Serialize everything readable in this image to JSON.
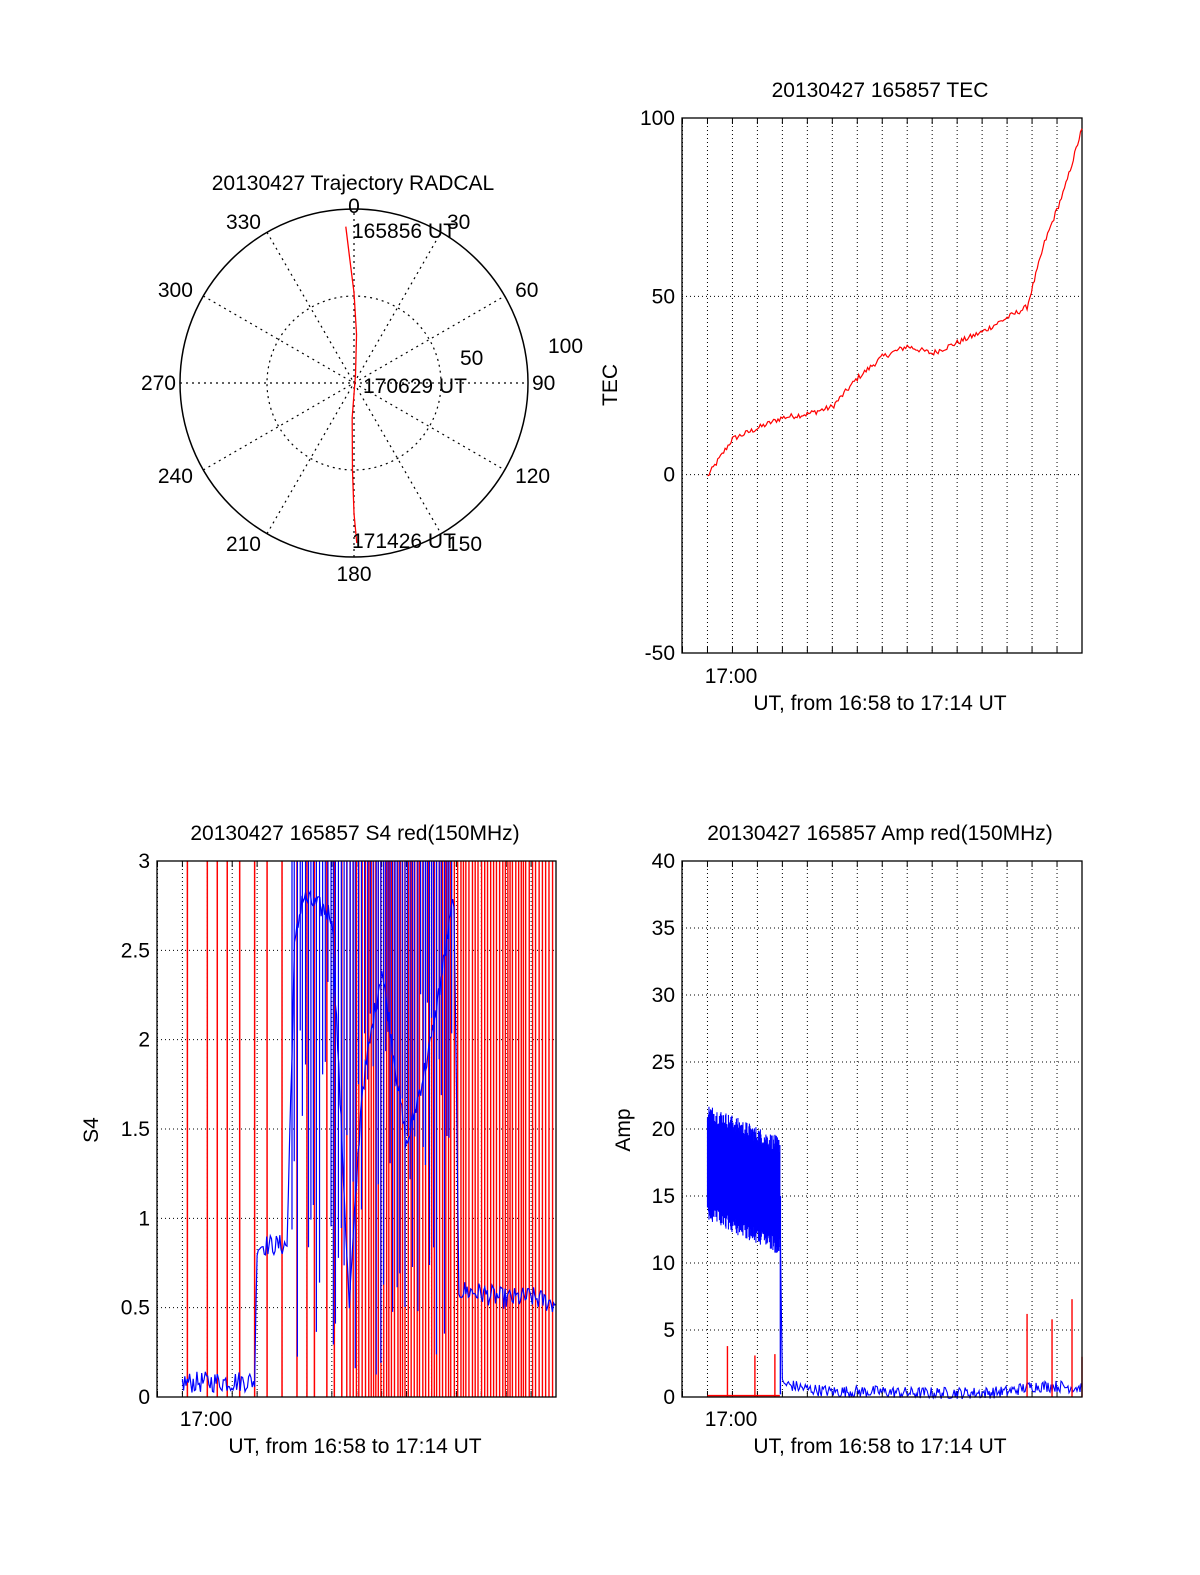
{
  "chart_data": [
    {
      "type": "polar",
      "title": "20130427 Trajectory RADCAL",
      "angle_labels": [
        "0",
        "30",
        "60",
        "90",
        "120",
        "150",
        "180",
        "210",
        "240",
        "270",
        "300",
        "330"
      ],
      "radius_labels": [
        "50",
        "100"
      ],
      "rlim": [
        0,
        100
      ],
      "grid": true,
      "annotations": [
        "165856 UT",
        "170629 UT",
        "171426 UT"
      ],
      "series": [
        {
          "color": "#ff0000",
          "points": [
            {
              "az": 357,
              "r": 90
            },
            {
              "az": 358,
              "r": 72
            },
            {
              "az": 0,
              "r": 52
            },
            {
              "az": 3,
              "r": 28
            },
            {
              "az": 10,
              "r": 5
            },
            {
              "az": 183,
              "r": 20
            },
            {
              "az": 181,
              "r": 50
            },
            {
              "az": 180,
              "r": 75
            },
            {
              "az": 179,
              "r": 92
            }
          ]
        }
      ]
    },
    {
      "type": "line",
      "title": "20130427 165857 TEC",
      "ylabel": "TEC",
      "xlabel": "UT, from 16:58 to 17:14 UT",
      "xtick_labels": [
        "17:00"
      ],
      "yticks": [
        "-50",
        "0",
        "50",
        "100"
      ],
      "ylim": [
        -50,
        100
      ],
      "xlim_minutes": [
        16.98,
        33.0
      ],
      "grid": true,
      "series": [
        {
          "color": "#ff0000",
          "points": [
            [
              18.0,
              -0.5
            ],
            [
              19.0,
              10
            ],
            [
              20.0,
              13
            ],
            [
              21.0,
              16
            ],
            [
              22.0,
              17
            ],
            [
              23.0,
              19
            ],
            [
              24.0,
              27
            ],
            [
              25.0,
              33
            ],
            [
              26.0,
              36
            ],
            [
              27.0,
              34
            ],
            [
              28.0,
              37
            ],
            [
              29.0,
              40
            ],
            [
              30.0,
              44
            ],
            [
              30.8,
              47
            ],
            [
              31.5,
              65
            ],
            [
              32.3,
              80
            ],
            [
              33.0,
              97
            ]
          ]
        }
      ]
    },
    {
      "type": "line",
      "title": "20130427 165857 S4 red(150MHz)",
      "ylabel": "S4",
      "xlabel": "UT, from 16:58 to 17:14 UT",
      "xtick_labels": [
        "17:00"
      ],
      "yticks": [
        "0",
        "0.5",
        "1",
        "1.5",
        "2",
        "2.5",
        "3"
      ],
      "ylim": [
        0,
        3
      ],
      "xlim_minutes": [
        16.98,
        33.0
      ],
      "grid": true,
      "series": [
        {
          "color": "#ff0000",
          "spike_times": [
            18.2,
            19.0,
            19.4,
            19.8,
            20.3,
            20.9,
            21.4,
            22.0,
            22.6,
            23.0,
            23.3,
            23.8,
            24.1,
            24.4
          ]
        },
        {
          "color": "#0000ff",
          "points": [
            [
              18.0,
              0.08
            ],
            [
              20.9,
              0.09
            ],
            [
              21.0,
              0.85
            ],
            [
              22.2,
              0.85
            ],
            [
              22.5,
              2.5
            ],
            [
              22.8,
              2.8
            ],
            [
              24.0,
              2.7
            ],
            [
              24.7,
              0.5
            ],
            [
              25.2,
              1.7
            ],
            [
              26.0,
              2.4
            ],
            [
              27.0,
              1.4
            ],
            [
              28.0,
              2.0
            ],
            [
              28.9,
              2.8
            ],
            [
              29.1,
              0.6
            ],
            [
              30.0,
              0.58
            ],
            [
              31.0,
              0.55
            ],
            [
              32.0,
              0.56
            ],
            [
              33.0,
              0.52
            ]
          ]
        }
      ]
    },
    {
      "type": "line",
      "title": "20130427 165857 Amp red(150MHz)",
      "ylabel": "Amp",
      "xlabel": "UT, from 16:58 to 17:14 UT",
      "xtick_labels": [
        "17:00"
      ],
      "yticks": [
        "0",
        "5",
        "10",
        "15",
        "20",
        "25",
        "30",
        "35",
        "40"
      ],
      "ylim": [
        0,
        40
      ],
      "xlim_minutes": [
        16.98,
        33.0
      ],
      "grid": true,
      "series": [
        {
          "color": "#0000ff",
          "points": [
            [
              18.0,
              17.5
            ],
            [
              19.0,
              16.8
            ],
            [
              20.0,
              15.9
            ],
            [
              20.9,
              15.0
            ],
            [
              21.0,
              1.0
            ],
            [
              22.0,
              0.6
            ],
            [
              23.0,
              0.4
            ],
            [
              24.0,
              0.4
            ],
            [
              25.0,
              0.4
            ],
            [
              26.0,
              0.3
            ],
            [
              27.0,
              0.3
            ],
            [
              28.0,
              0.3
            ],
            [
              29.0,
              0.3
            ],
            [
              30.0,
              0.4
            ],
            [
              31.0,
              0.8
            ],
            [
              32.0,
              0.8
            ],
            [
              33.0,
              0.7
            ]
          ]
        },
        {
          "color": "#ff0000",
          "points": [
            [
              18.0,
              0.1
            ],
            [
              20.9,
              0.1
            ]
          ],
          "spikes": [
            {
              "t": 18.8,
              "v": 3.8
            },
            {
              "t": 19.9,
              "v": 3.1
            },
            {
              "t": 20.7,
              "v": 3.2
            },
            {
              "t": 30.8,
              "v": 6.2
            },
            {
              "t": 31.8,
              "v": 5.8
            },
            {
              "t": 32.6,
              "v": 7.3
            },
            {
              "t": 33.0,
              "v": 3.0
            }
          ]
        }
      ]
    }
  ]
}
